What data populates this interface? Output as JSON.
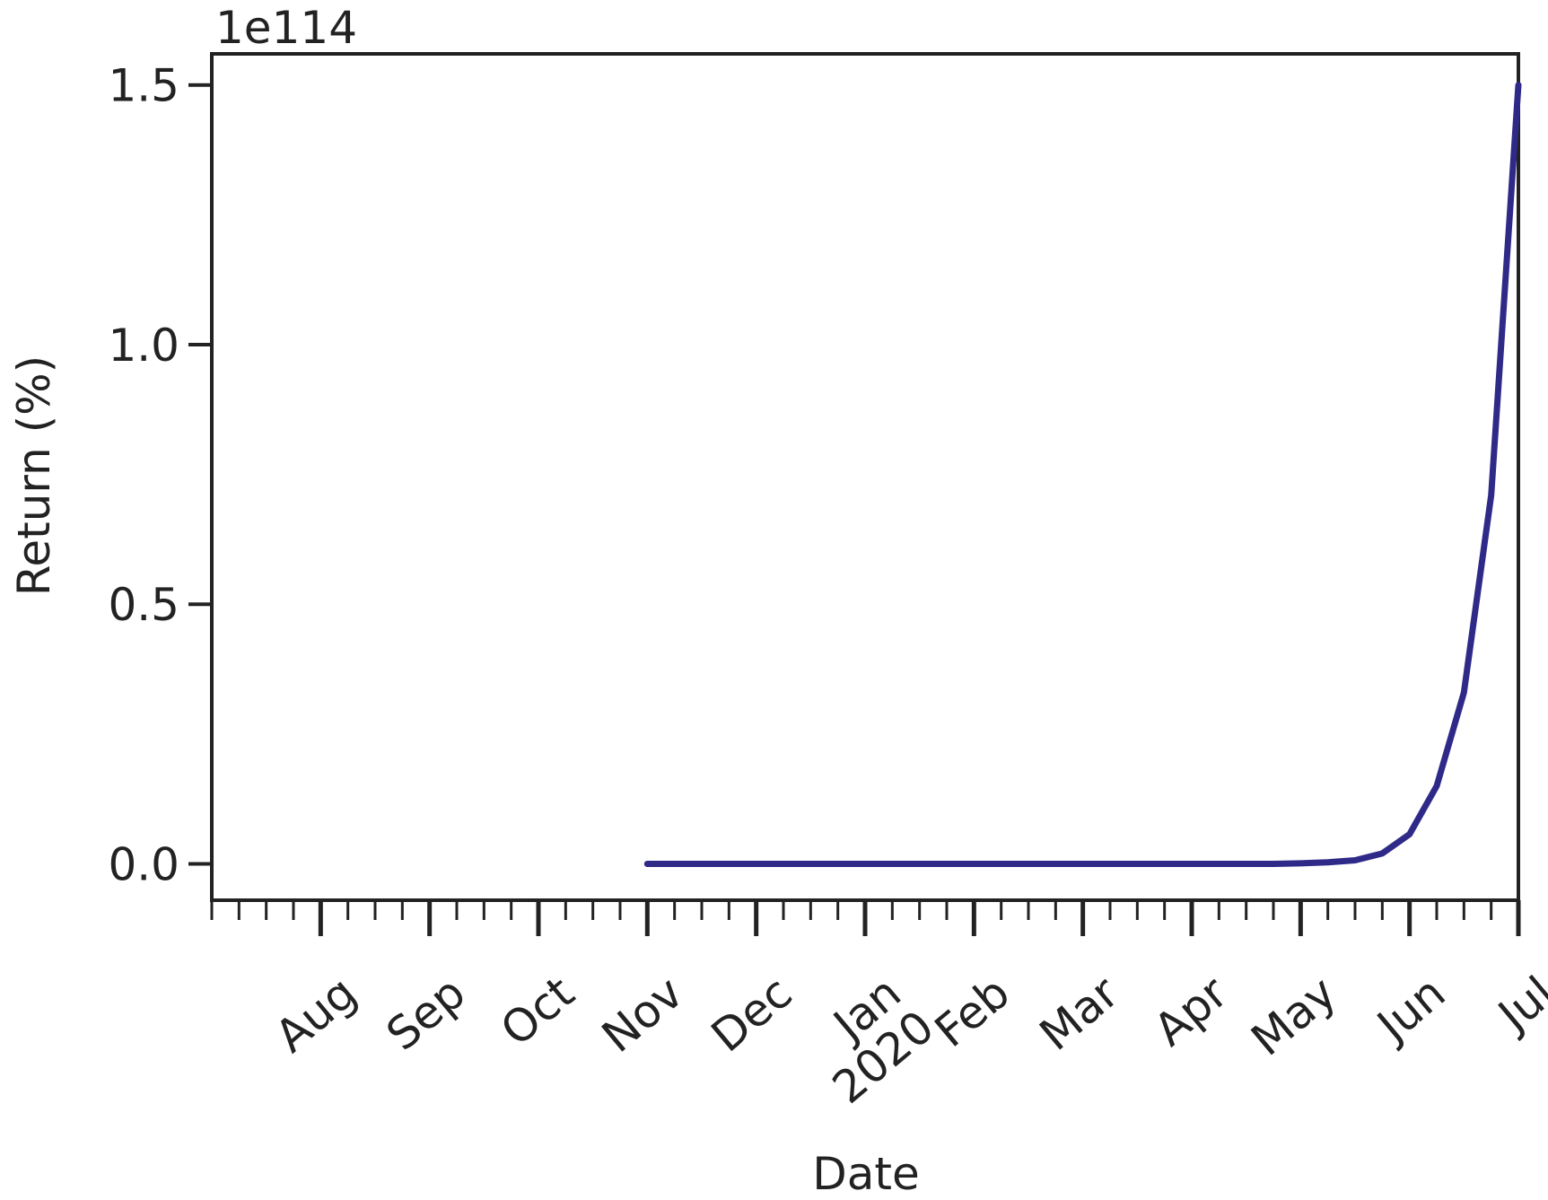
{
  "chart_data": {
    "type": "line",
    "y_label": "Return (%)",
    "x_label": "Date",
    "offset_label": "1e114",
    "year_label": "2020",
    "categories": [
      null,
      null,
      null,
      null,
      "Aug",
      null,
      null,
      null,
      "Sep",
      null,
      null,
      null,
      "Oct",
      null,
      null,
      null,
      "Nov",
      null,
      null,
      null,
      "Dec",
      null,
      null,
      null,
      "Jan",
      null,
      null,
      null,
      "Feb",
      null,
      null,
      null,
      "Mar",
      null,
      null,
      null,
      "Apr",
      null,
      null,
      null,
      "May",
      null,
      null,
      null,
      "Jun",
      null,
      null,
      null,
      "Jul"
    ],
    "series": [
      {
        "color": "#2f2a88",
        "values": [
          null,
          null,
          null,
          null,
          null,
          null,
          null,
          null,
          null,
          null,
          null,
          null,
          null,
          null,
          null,
          null,
          0,
          0,
          0,
          0,
          0,
          0,
          0,
          0,
          0,
          0,
          0,
          0,
          0,
          0,
          0,
          0,
          0,
          0,
          0,
          0,
          0,
          0,
          0,
          0,
          0.001,
          0.003,
          0.007,
          0.02,
          0.057,
          0.15,
          0.33,
          0.71,
          1.5
        ]
      }
    ],
    "ylim": [
      -0.07,
      1.56
    ],
    "yticks": [
      {
        "value": 0,
        "label": "0.0"
      },
      {
        "value": 0.5,
        "label": "0.5"
      },
      {
        "value": 1,
        "label": "1.0"
      },
      {
        "value": 1.5,
        "label": "1.5"
      }
    ],
    "grid": false
  }
}
